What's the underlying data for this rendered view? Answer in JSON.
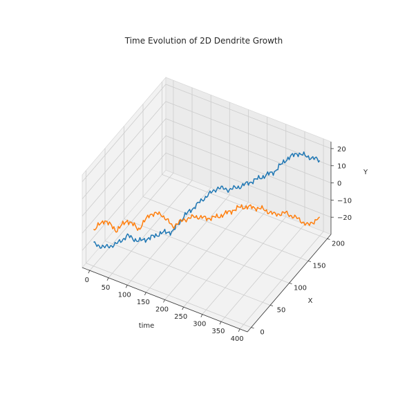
{
  "chart_data": {
    "type": "line",
    "projection": "3d",
    "title": "Time Evolution of 2D Dendrite Growth",
    "xlabel": "time",
    "ylabel": "X",
    "zlabel": "Y",
    "xlim": [
      -20,
      420
    ],
    "ylim": [
      -10,
      210
    ],
    "zlim": [
      -30,
      24
    ],
    "x_ticks": [
      "0",
      "50",
      "100",
      "150",
      "200",
      "250",
      "300",
      "350",
      "400"
    ],
    "y_ticks": [
      "0",
      "50",
      "100",
      "150",
      "200"
    ],
    "z_ticks": [
      "−20",
      "−10",
      "0",
      "10",
      "20"
    ],
    "grid": true,
    "legend": "none",
    "series": [
      {
        "color": "#1f77b4",
        "x": [
          0,
          20,
          40,
          60,
          80,
          100,
          120,
          140,
          160,
          180,
          200,
          220,
          240,
          260,
          280,
          300,
          320,
          340,
          360,
          380,
          400
        ],
        "y": [
          0,
          10,
          20,
          30,
          40,
          50,
          60,
          70,
          80,
          90,
          100,
          110,
          120,
          130,
          140,
          150,
          160,
          170,
          180,
          190,
          200
        ],
        "z": [
          -17,
          -20,
          -19,
          -15,
          -19,
          -18,
          -16,
          -16,
          -8,
          -3,
          2,
          6,
          4,
          5,
          7,
          9,
          11,
          17,
          20,
          17,
          14
        ]
      },
      {
        "color": "#ff7f0e",
        "x": [
          0,
          20,
          40,
          60,
          80,
          100,
          120,
          140,
          160,
          180,
          200,
          220,
          240,
          260,
          280,
          300,
          320,
          340,
          360,
          380,
          400
        ],
        "y": [
          0,
          10,
          20,
          30,
          40,
          50,
          60,
          70,
          80,
          90,
          100,
          110,
          120,
          130,
          140,
          150,
          160,
          170,
          180,
          190,
          200
        ],
        "z": [
          -9,
          -4,
          -11,
          -6,
          -12,
          -4,
          -5,
          -13,
          -10,
          -9,
          -11,
          -11,
          -9,
          -7,
          -8,
          -10,
          -14,
          -14,
          -18,
          -23,
          -19
        ]
      }
    ]
  }
}
